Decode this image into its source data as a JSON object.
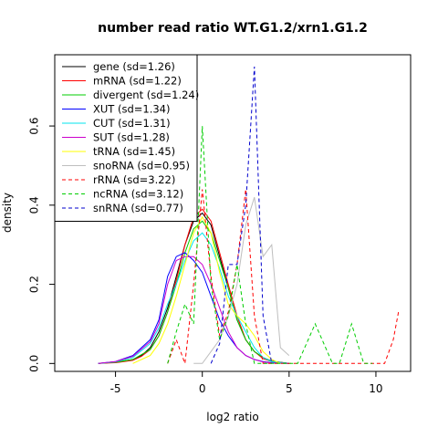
{
  "chart_data": {
    "type": "line",
    "title": "number read ratio WT.G1.2/xrn1.G1.2",
    "xlabel": "log2 ratio",
    "ylabel": "density",
    "xlim": [
      -8.5,
      12
    ],
    "ylim": [
      -0.02,
      0.78
    ],
    "xticks": [
      "-5",
      "0",
      "5",
      "10"
    ],
    "yticks": [
      "0.0",
      "0.2",
      "0.4",
      "0.6"
    ],
    "legend_position": "top-left",
    "series": [
      {
        "name": "gene (sd=1.26)",
        "color": "#000000",
        "dash": "solid",
        "x": [
          -6,
          -5,
          -4,
          -3.5,
          -3,
          -2.5,
          -2,
          -1.5,
          -1,
          -0.5,
          0,
          0.5,
          1,
          1.5,
          2,
          2.5,
          3,
          3.5,
          4,
          5
        ],
        "y": [
          0,
          0.003,
          0.01,
          0.02,
          0.04,
          0.08,
          0.14,
          0.22,
          0.3,
          0.36,
          0.38,
          0.35,
          0.27,
          0.19,
          0.11,
          0.06,
          0.03,
          0.015,
          0.006,
          0
        ]
      },
      {
        "name": "mRNA (sd=1.22)",
        "color": "#ff0000",
        "dash": "solid",
        "x": [
          -6,
          -5,
          -4,
          -3.5,
          -3,
          -2.5,
          -2,
          -1.5,
          -1,
          -0.5,
          0,
          0.5,
          1,
          1.5,
          2,
          2.5,
          3,
          3.5,
          4,
          5
        ],
        "y": [
          0,
          0.002,
          0.008,
          0.018,
          0.035,
          0.07,
          0.13,
          0.21,
          0.3,
          0.37,
          0.39,
          0.36,
          0.28,
          0.2,
          0.12,
          0.06,
          0.03,
          0.012,
          0.005,
          0
        ]
      },
      {
        "name": "divergent (sd=1.24)",
        "color": "#00cd00",
        "dash": "solid",
        "x": [
          -6,
          -5,
          -4,
          -3,
          -2.5,
          -2,
          -1.5,
          -1,
          -0.5,
          0,
          0.5,
          1,
          1.5,
          2,
          2.5,
          3,
          3.5,
          4,
          5
        ],
        "y": [
          0,
          0.003,
          0.01,
          0.035,
          0.07,
          0.13,
          0.2,
          0.28,
          0.34,
          0.36,
          0.33,
          0.26,
          0.19,
          0.11,
          0.06,
          0.03,
          0.015,
          0.005,
          0
        ]
      },
      {
        "name": "XUT (sd=1.34)",
        "color": "#0000ff",
        "dash": "solid",
        "x": [
          -6,
          -5,
          -4,
          -3,
          -2.5,
          -2,
          -1.5,
          -1,
          -0.5,
          0,
          0.5,
          1,
          1.5,
          2,
          2.5,
          3,
          3.5,
          4,
          5
        ],
        "y": [
          0,
          0.005,
          0.02,
          0.06,
          0.11,
          0.22,
          0.27,
          0.28,
          0.26,
          0.23,
          0.17,
          0.11,
          0.07,
          0.04,
          0.02,
          0.01,
          0.005,
          0.002,
          0
        ]
      },
      {
        "name": "CUT (sd=1.31)",
        "color": "#00e5ee",
        "dash": "solid",
        "x": [
          -6,
          -5,
          -4,
          -3,
          -2.5,
          -2,
          -1.5,
          -1,
          -0.5,
          0,
          0.5,
          1,
          1.5,
          2,
          2.5,
          3,
          3.5,
          4,
          5
        ],
        "y": [
          0,
          0.004,
          0.015,
          0.05,
          0.09,
          0.15,
          0.2,
          0.26,
          0.31,
          0.33,
          0.3,
          0.24,
          0.17,
          0.12,
          0.08,
          0.04,
          0.015,
          0.005,
          0
        ]
      },
      {
        "name": "SUT (sd=1.28)",
        "color": "#cc00cc",
        "dash": "solid",
        "x": [
          -6,
          -5,
          -4,
          -3,
          -2.5,
          -2,
          -1.5,
          -1,
          -0.5,
          0,
          0.5,
          1,
          1.5,
          2,
          2.5,
          3,
          3.5,
          4,
          5
        ],
        "y": [
          0,
          0.005,
          0.018,
          0.055,
          0.1,
          0.2,
          0.26,
          0.27,
          0.27,
          0.25,
          0.2,
          0.14,
          0.08,
          0.04,
          0.02,
          0.01,
          0.004,
          0.001,
          0
        ]
      },
      {
        "name": "tRNA (sd=1.45)",
        "color": "#ffff00",
        "dash": "solid",
        "x": [
          -4,
          -3,
          -2.5,
          -2,
          -1.5,
          -1,
          -0.5,
          0,
          0.5,
          1,
          1.5,
          2,
          2.5,
          3,
          3.5,
          4,
          4.5
        ],
        "y": [
          0,
          0.02,
          0.05,
          0.1,
          0.17,
          0.25,
          0.33,
          0.37,
          0.33,
          0.23,
          0.15,
          0.12,
          0.1,
          0.07,
          0.03,
          0.01,
          0
        ]
      },
      {
        "name": "snoRNA (sd=0.95)",
        "color": "#bebebe",
        "dash": "solid",
        "x": [
          -0.5,
          0,
          0.5,
          1,
          1.5,
          2,
          2.5,
          3,
          3.5,
          4,
          4.5,
          5
        ],
        "y": [
          0,
          0,
          0.03,
          0.06,
          0.12,
          0.2,
          0.35,
          0.42,
          0.27,
          0.3,
          0.04,
          0.02
        ]
      },
      {
        "name": "rRNA (sd=3.22)",
        "color": "#ff0000",
        "dash": "dashed",
        "x": [
          -2,
          -1.5,
          -1,
          -0.5,
          0,
          0.5,
          1,
          1.5,
          2,
          2.5,
          3,
          3.5,
          4,
          10.5,
          11,
          11.3
        ],
        "y": [
          0,
          0.06,
          0,
          0.2,
          0.44,
          0.22,
          0.07,
          0.13,
          0.25,
          0.44,
          0.12,
          0,
          0,
          0,
          0.06,
          0.13
        ]
      },
      {
        "name": "ncRNA (sd=3.12)",
        "color": "#00cd00",
        "dash": "dashed",
        "x": [
          -2,
          -1.5,
          -1,
          -0.5,
          0,
          0.5,
          1,
          1.5,
          2,
          2.5,
          3,
          5.5,
          6.5,
          7.5,
          7.9,
          8.6,
          9.3,
          9.8
        ],
        "y": [
          0,
          0.08,
          0.15,
          0.1,
          0.6,
          0.2,
          0.06,
          0.12,
          0.25,
          0.1,
          0,
          0,
          0.1,
          0,
          0,
          0.1,
          0,
          0
        ]
      },
      {
        "name": "snRNA (sd=0.77)",
        "color": "#0000cd",
        "dash": "dashed",
        "x": [
          0.5,
          1,
          1.5,
          2,
          2.5,
          3,
          3.5,
          4
        ],
        "y": [
          0,
          0.05,
          0.25,
          0.25,
          0.4,
          0.75,
          0.12,
          0
        ]
      }
    ]
  }
}
